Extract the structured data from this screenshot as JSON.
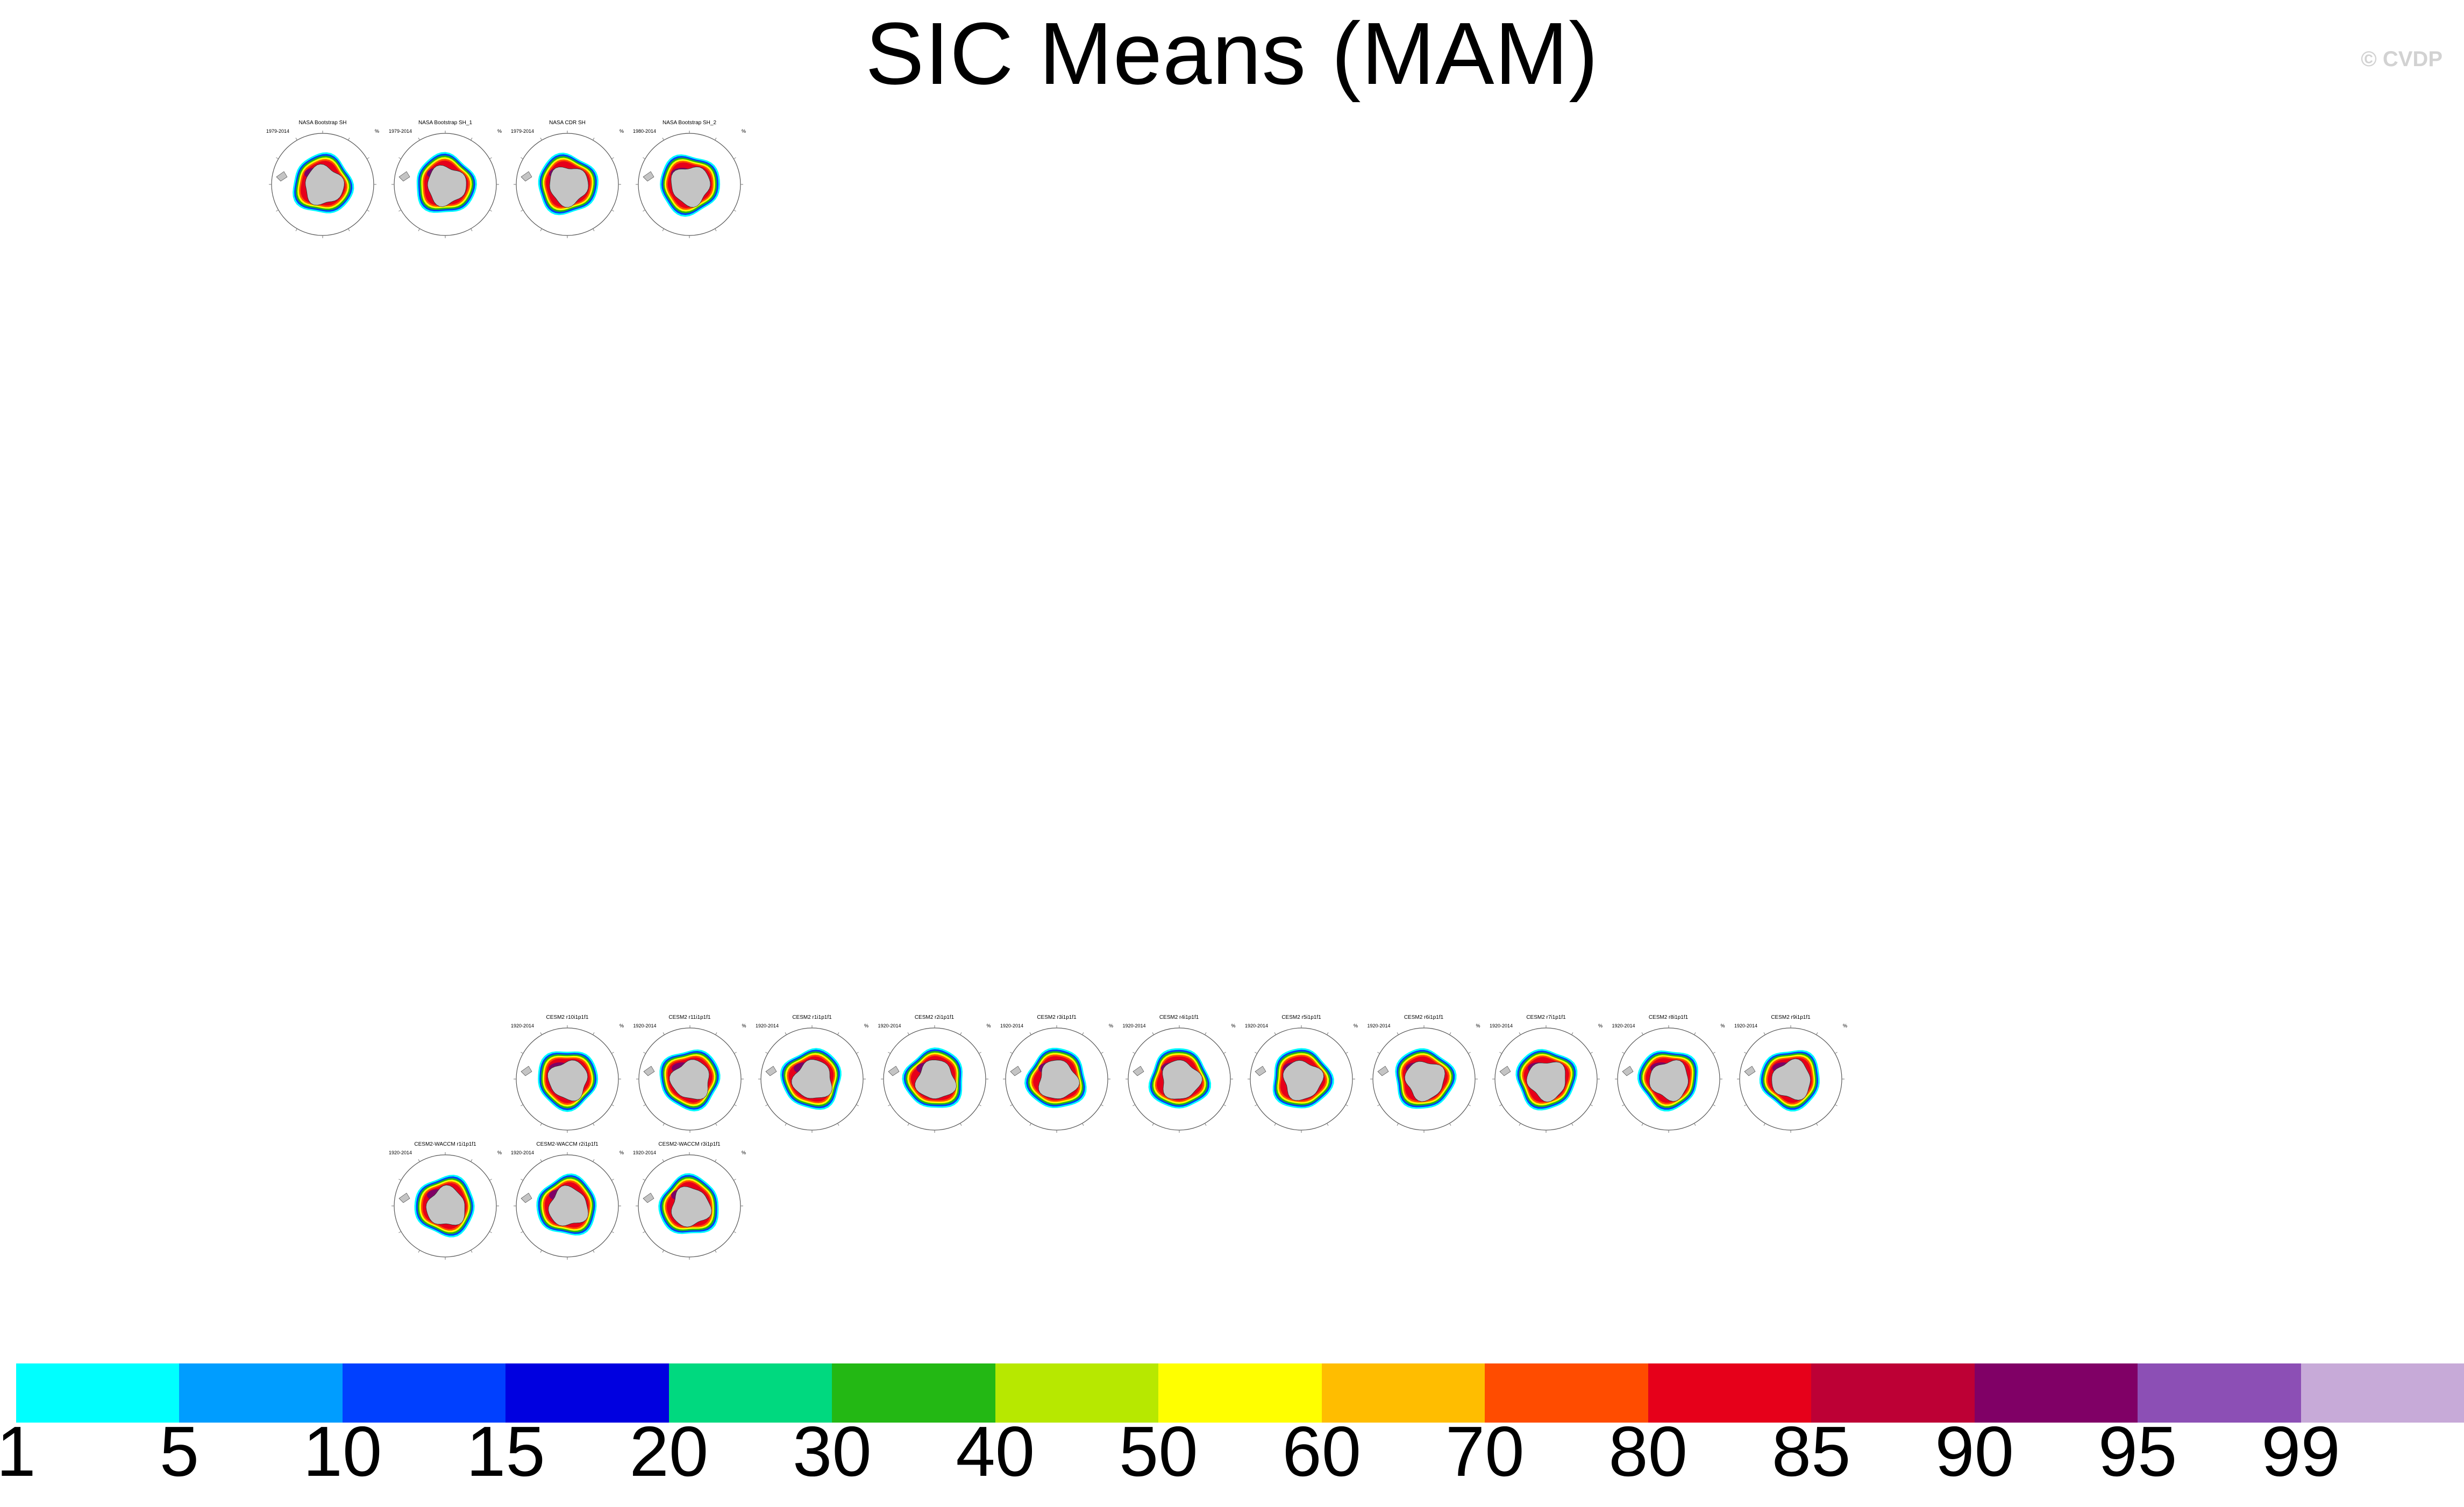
{
  "title": "SIC Means (MAM)",
  "watermark": "© CVDP",
  "units": "%",
  "colors": {
    "land": "#c4c4c4",
    "bins": [
      "#00ffff",
      "#009dff",
      "#0040ff",
      "#0000e0",
      "#00d97f",
      "#23b814",
      "#b7e800",
      "#ffff00",
      "#ffbd00",
      "#ff4c00",
      "#e6001a",
      "#bd0035",
      "#800066",
      "#8c4fb5",
      "#c7aad8"
    ]
  },
  "colorbar": {
    "labels": [
      "1",
      "5",
      "10",
      "15",
      "20",
      "30",
      "40",
      "50",
      "60",
      "70",
      "80",
      "85",
      "90",
      "95",
      "99"
    ]
  },
  "panels": [
    {
      "title": "NASA Bootstrap SH",
      "years": "1979-2014"
    },
    {
      "title": "NASA Bootstrap SH_1",
      "years": "1979-2014"
    },
    {
      "title": "NASA CDR SH",
      "years": "1979-2014"
    },
    {
      "title": "NASA Bootstrap SH_2",
      "years": "1980-2014"
    },
    {
      "title": "CESM2 r10i1p1f1",
      "years": "1920-2014"
    },
    {
      "title": "CESM2 r11i1p1f1",
      "years": "1920-2014"
    },
    {
      "title": "CESM2 r1i1p1f1",
      "years": "1920-2014"
    },
    {
      "title": "CESM2 r2i1p1f1",
      "years": "1920-2014"
    },
    {
      "title": "CESM2 r3i1p1f1",
      "years": "1920-2014"
    },
    {
      "title": "CESM2 r4i1p1f1",
      "years": "1920-2014"
    },
    {
      "title": "CESM2 r5i1p1f1",
      "years": "1920-2014"
    },
    {
      "title": "CESM2 r6i1p1f1",
      "years": "1920-2014"
    },
    {
      "title": "CESM2 r7i1p1f1",
      "years": "1920-2014"
    },
    {
      "title": "CESM2 r8i1p1f1",
      "years": "1920-2014"
    },
    {
      "title": "CESM2 r9i1p1f1",
      "years": "1920-2014"
    },
    {
      "title": "CESM2-WACCM r1i1p1f1",
      "years": "1920-2014"
    },
    {
      "title": "CESM2-WACCM r2i1p1f1",
      "years": "1920-2014"
    },
    {
      "title": "CESM2-WACCM r3i1p1f1",
      "years": "1920-2014"
    }
  ],
  "chart_data": {
    "type": "heatmap",
    "title": "SIC Means (MAM)",
    "units": "%",
    "colorbar_levels": [
      1,
      5,
      10,
      15,
      20,
      30,
      40,
      50,
      60,
      70,
      80,
      85,
      90,
      95,
      99
    ],
    "maps": [
      "NASA Bootstrap SH (1979-2014)",
      "NASA Bootstrap SH_1 (1979-2014)",
      "NASA CDR SH (1979-2014)",
      "NASA Bootstrap SH_2 (1980-2014)",
      "CESM2 r10i1p1f1 (1920-2014)",
      "CESM2 r11i1p1f1 (1920-2014)",
      "CESM2 r1i1p1f1 (1920-2014)",
      "CESM2 r2i1p1f1 (1920-2014)",
      "CESM2 r3i1p1f1 (1920-2014)",
      "CESM2 r4i1p1f1 (1920-2014)",
      "CESM2 r5i1p1f1 (1920-2014)",
      "CESM2 r6i1p1f1 (1920-2014)",
      "CESM2 r7i1p1f1 (1920-2014)",
      "CESM2 r8i1p1f1 (1920-2014)",
      "CESM2 r9i1p1f1 (1920-2014)",
      "CESM2-WACCM r1i1p1f1 (1920-2014)",
      "CESM2-WACCM r2i1p1f1 (1920-2014)",
      "CESM2-WACCM r3i1p1f1 (1920-2014)"
    ]
  }
}
